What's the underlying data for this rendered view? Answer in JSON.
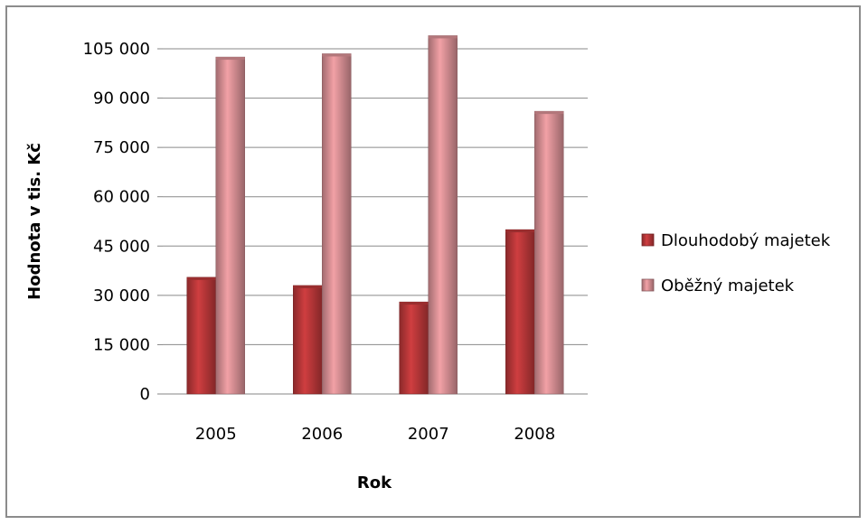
{
  "chart_data": {
    "type": "bar",
    "categories": [
      "2005",
      "2006",
      "2007",
      "2008"
    ],
    "series": [
      {
        "name": "Dlouhodobý majetek",
        "values": [
          35500,
          33000,
          28000,
          50000
        ],
        "color": "#c0393b"
      },
      {
        "name": "Oběžný majetek",
        "values": [
          102500,
          103500,
          109000,
          86000
        ],
        "color": "#e0959a"
      }
    ],
    "xlabel": "Rok",
    "ylabel": "Hodnota v tis. Kč",
    "ylim": [
      0,
      105000
    ],
    "yticks": [
      0,
      15000,
      30000,
      45000,
      60000,
      75000,
      90000,
      105000
    ],
    "ytick_labels": [
      "0",
      "15 000",
      "30 000",
      "45 000",
      "60 000",
      "75 000",
      "90 000",
      "105 000"
    ],
    "grid": true,
    "legend_position": "right"
  }
}
